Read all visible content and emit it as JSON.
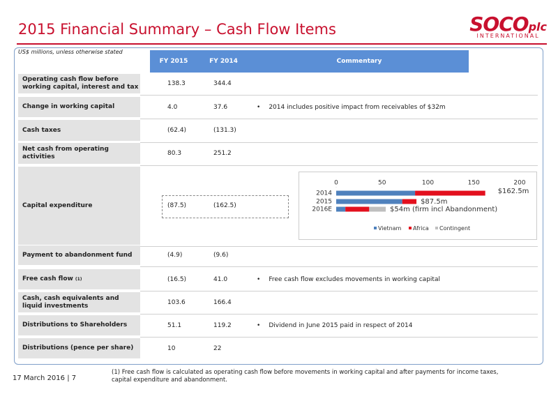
{
  "header": {
    "title": "2015 Financial Summary – Cash Flow Items",
    "logo": {
      "name": "SOCO",
      "suffix": "plc",
      "sub": "INTERNATIONAL"
    }
  },
  "table": {
    "note": "US$ millions, unless otherwise stated",
    "columns": [
      "FY 2015",
      "FY 2014",
      "Commentary"
    ],
    "rows": [
      {
        "label": "Operating cash flow before working capital, interest and tax",
        "fy2015": "138.3",
        "fy2014": "344.4",
        "commentary": null
      },
      {
        "label": "Change in working capital",
        "fy2015": "4.0",
        "fy2014": "37.6",
        "commentary": "2014 includes positive impact from receivables of $32m"
      },
      {
        "label": "Cash taxes",
        "fy2015": "(62.4)",
        "fy2014": "(131.3)",
        "commentary": null
      },
      {
        "label": "Net cash from operating activities",
        "fy2015": "80.3",
        "fy2014": "251.2",
        "commentary": null
      },
      {
        "label": "Capital expenditure",
        "fy2015": "(87.5)",
        "fy2014": "(162.5)",
        "commentary": null
      },
      {
        "label": "Payment to abandonment fund",
        "fy2015": "(4.9)",
        "fy2014": "(9.6)",
        "commentary": null
      },
      {
        "label": "Free cash flow",
        "sup": "(1)",
        "fy2015": "(16.5)",
        "fy2014": "41.0",
        "commentary": "Free cash flow excludes movements in working capital"
      },
      {
        "label": "Cash, cash equivalents and liquid investments",
        "fy2015": "103.6",
        "fy2014": "166.4",
        "commentary": null
      },
      {
        "label": "Distributions to Shareholders",
        "fy2015": "51.1",
        "fy2014": "119.2",
        "commentary": "Dividend in June 2015 paid in respect of 2014"
      },
      {
        "label": "Distributions (pence per share)",
        "fy2015": "10",
        "fy2014": "22",
        "commentary": null
      }
    ]
  },
  "chart_data": {
    "type": "stacked-barh",
    "categories": [
      "2014",
      "2015",
      "2016E"
    ],
    "series": [
      {
        "name": "Vietnam",
        "color": "#4f81bd",
        "values": [
          86,
          72,
          10
        ]
      },
      {
        "name": "Africa",
        "color": "#e3101e",
        "values": [
          76.5,
          15.5,
          26
        ]
      },
      {
        "name": "Contingent",
        "color": "#bfbfbf",
        "values": [
          null,
          null,
          18
        ]
      }
    ],
    "xlim": [
      0,
      200
    ],
    "xticks": [
      0,
      50,
      100,
      150,
      200
    ],
    "annotations": [
      "$162.5m",
      "$87.5m",
      "$54m (firm incl Abandonment)"
    ]
  },
  "footer": {
    "date": "17 March 2016",
    "page": "7",
    "footnote": "(1)  Free cash flow is calculated as operating cash flow before movements in working capital and after payments for income taxes, capital expenditure and abandonment."
  }
}
